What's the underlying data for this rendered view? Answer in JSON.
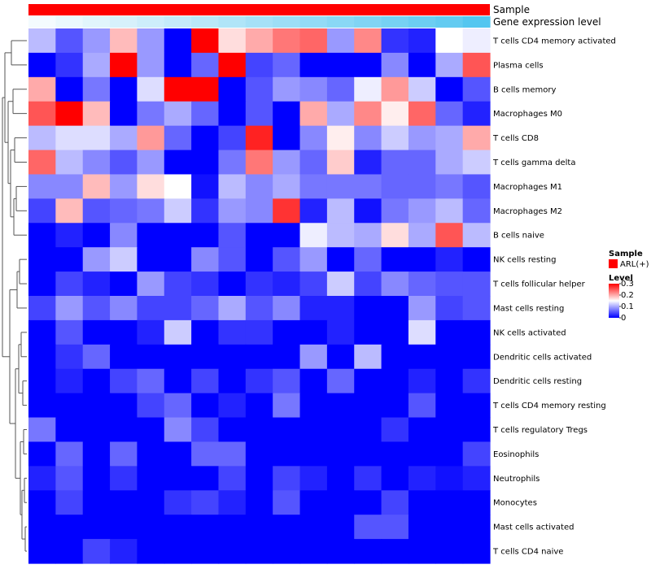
{
  "chart_data": {
    "type": "heatmap",
    "columns": 17,
    "rows": [
      "T cells CD4 memory activated",
      "Plasma cells",
      "B cells memory",
      "Macrophages M0",
      "T cells CD8",
      "T cells gamma delta",
      "Macrophages M1",
      "Macrophages M2",
      "B cells naive",
      "NK cells resting",
      "T cells follicular helper",
      "Mast cells resting",
      "NK cells activated",
      "Dendritic cells activated",
      "Dendritic cells resting",
      "T cells CD4 memory resting",
      "T cells regulatory  Tregs",
      "Eosinophils",
      "Neutrophils",
      "Monocytes",
      "Mast cells activated",
      "T cells CD4 naive"
    ],
    "values": [
      [
        0.11,
        0.05,
        0.09,
        0.19,
        0.09,
        0.0,
        0.3,
        0.17,
        0.2,
        0.23,
        0.24,
        0.09,
        0.22,
        0.03,
        0.02,
        0.15,
        0.14
      ],
      [
        0.0,
        0.03,
        0.1,
        0.3,
        0.09,
        0.0,
        0.06,
        0.3,
        0.04,
        0.06,
        0.0,
        0.0,
        0.0,
        0.08,
        0.0,
        0.1,
        0.25
      ],
      [
        0.2,
        0.0,
        0.07,
        0.0,
        0.13,
        0.3,
        0.3,
        0.0,
        0.05,
        0.09,
        0.08,
        0.06,
        0.14,
        0.21,
        0.12,
        0.0,
        0.05
      ],
      [
        0.25,
        0.3,
        0.19,
        0.0,
        0.07,
        0.1,
        0.06,
        0.0,
        0.05,
        0.0,
        0.2,
        0.1,
        0.22,
        0.16,
        0.24,
        0.06,
        0.02
      ],
      [
        0.11,
        0.13,
        0.13,
        0.1,
        0.21,
        0.06,
        0.0,
        0.04,
        0.28,
        0.0,
        0.08,
        0.16,
        0.08,
        0.12,
        0.09,
        0.1,
        0.2
      ],
      [
        0.24,
        0.11,
        0.08,
        0.05,
        0.09,
        0.0,
        0.0,
        0.07,
        0.23,
        0.09,
        0.06,
        0.18,
        0.02,
        0.06,
        0.06,
        0.1,
        0.12
      ],
      [
        0.08,
        0.08,
        0.19,
        0.09,
        0.17,
        0.15,
        0.01,
        0.11,
        0.08,
        0.1,
        0.07,
        0.07,
        0.07,
        0.06,
        0.06,
        0.07,
        0.05
      ],
      [
        0.04,
        0.19,
        0.05,
        0.06,
        0.07,
        0.12,
        0.03,
        0.09,
        0.08,
        0.27,
        0.02,
        0.11,
        0.01,
        0.07,
        0.09,
        0.11,
        0.06
      ],
      [
        0.0,
        0.02,
        0.0,
        0.08,
        0.0,
        0.0,
        0.0,
        0.05,
        0.0,
        0.0,
        0.14,
        0.11,
        0.1,
        0.17,
        0.1,
        0.25,
        0.11
      ],
      [
        0.0,
        0.0,
        0.09,
        0.12,
        0.0,
        0.0,
        0.08,
        0.05,
        0.0,
        0.05,
        0.09,
        0.0,
        0.06,
        0.0,
        0.0,
        0.02,
        0.0
      ],
      [
        0.0,
        0.04,
        0.02,
        0.0,
        0.09,
        0.04,
        0.03,
        0.0,
        0.03,
        0.02,
        0.04,
        0.12,
        0.04,
        0.08,
        0.06,
        0.05,
        0.05
      ],
      [
        0.04,
        0.09,
        0.05,
        0.08,
        0.04,
        0.04,
        0.06,
        0.1,
        0.05,
        0.08,
        0.02,
        0.02,
        0.0,
        0.0,
        0.09,
        0.04,
        0.05
      ],
      [
        0.0,
        0.05,
        0.0,
        0.0,
        0.02,
        0.12,
        0.0,
        0.03,
        0.03,
        0.0,
        0.0,
        0.02,
        0.0,
        0.0,
        0.13,
        0.0,
        0.0
      ],
      [
        0.0,
        0.03,
        0.06,
        0.0,
        0.0,
        0.0,
        0.0,
        0.0,
        0.0,
        0.0,
        0.09,
        0.0,
        0.11,
        0.0,
        0.0,
        0.0,
        0.0
      ],
      [
        0.0,
        0.02,
        0.0,
        0.04,
        0.06,
        0.0,
        0.04,
        0.0,
        0.03,
        0.05,
        0.0,
        0.06,
        0.0,
        0.0,
        0.02,
        0.0,
        0.03
      ],
      [
        0.0,
        0.0,
        0.0,
        0.0,
        0.04,
        0.06,
        0.0,
        0.02,
        0.0,
        0.07,
        0.0,
        0.0,
        0.0,
        0.0,
        0.05,
        0.0,
        0.0
      ],
      [
        0.07,
        0.0,
        0.0,
        0.0,
        0.0,
        0.08,
        0.04,
        0.0,
        0.0,
        0.0,
        0.0,
        0.0,
        0.0,
        0.03,
        0.0,
        0.0,
        0.0
      ],
      [
        0.0,
        0.06,
        0.0,
        0.06,
        0.0,
        0.0,
        0.06,
        0.06,
        0.0,
        0.0,
        0.0,
        0.0,
        0.0,
        0.0,
        0.0,
        0.0,
        0.04
      ],
      [
        0.02,
        0.05,
        0.0,
        0.03,
        0.0,
        0.0,
        0.0,
        0.04,
        0.0,
        0.04,
        0.02,
        0.0,
        0.03,
        0.0,
        0.02,
        0.01,
        0.02
      ],
      [
        0.0,
        0.04,
        0.0,
        0.0,
        0.0,
        0.03,
        0.04,
        0.02,
        0.0,
        0.05,
        0.0,
        0.0,
        0.0,
        0.04,
        0.0,
        0.0,
        0.0
      ],
      [
        0.0,
        0.0,
        0.0,
        0.0,
        0.0,
        0.0,
        0.0,
        0.0,
        0.0,
        0.0,
        0.0,
        0.0,
        0.05,
        0.05,
        0.0,
        0.0,
        0.0
      ],
      [
        0.0,
        0.0,
        0.04,
        0.02,
        0.0,
        0.0,
        0.0,
        0.0,
        0.0,
        0.0,
        0.0,
        0.0,
        0.0,
        0.0,
        0.0,
        0.0,
        0.0
      ]
    ],
    "annotations": {
      "sample_label": "Sample",
      "expression_label": "Gene expression level",
      "expression_values": [
        0.02,
        0.04,
        0.06,
        0.08,
        0.1,
        0.12,
        0.14,
        0.16,
        0.18,
        0.2,
        0.22,
        0.24,
        0.26,
        0.28,
        0.3,
        0.32,
        0.35
      ]
    },
    "legend": {
      "sample_title": "Sample",
      "sample_item": "ARL(+)",
      "level_title": "Level",
      "level_ticks": [
        "0.3",
        "0.2",
        "0.1",
        "0"
      ],
      "level_tick_values": [
        0.3,
        0.2,
        0.1,
        0
      ],
      "level_range": [
        0,
        0.3
      ],
      "placement": "right"
    },
    "colors": {
      "low": "#0000ff",
      "mid": "#ffffff",
      "high": "#ff0000",
      "sample": "#ff0000",
      "expression_low": "#f4fbfe",
      "expression_high": "#54c6f0"
    }
  }
}
